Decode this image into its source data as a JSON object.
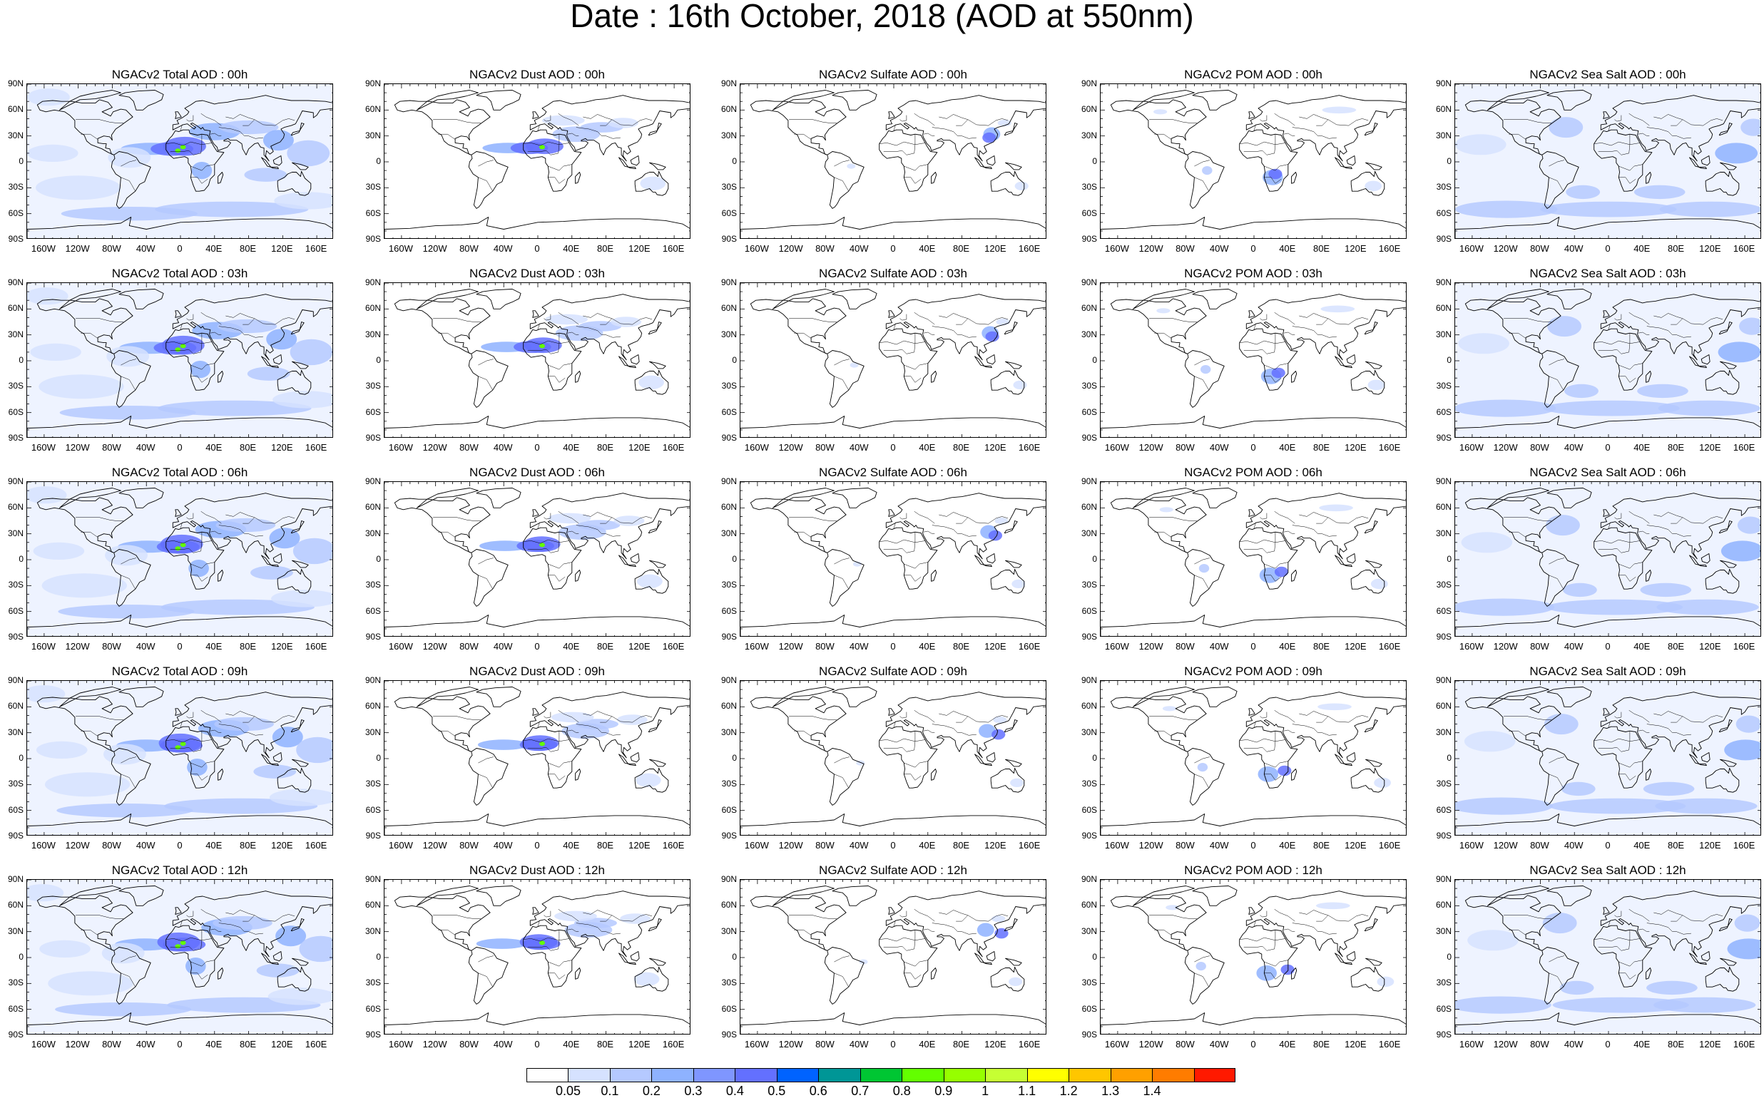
{
  "title": "Date : 16th October, 2018 (AOD at 550nm)",
  "lat_labels": [
    "90N",
    "60N",
    "30N",
    "0",
    "30S",
    "60S",
    "90S"
  ],
  "lon_labels": [
    "160W",
    "120W",
    "80W",
    "40W",
    "0",
    "40E",
    "80E",
    "120E",
    "160E"
  ],
  "lon_values": [
    -160,
    -120,
    -80,
    -40,
    0,
    40,
    80,
    120,
    160
  ],
  "panels": [
    {
      "title": "NGACv2 Total AOD : 00h",
      "species": "total",
      "hour": 0
    },
    {
      "title": "NGACv2 Dust AOD : 00h",
      "species": "dust",
      "hour": 0
    },
    {
      "title": "NGACv2 Sulfate AOD : 00h",
      "species": "sulfate",
      "hour": 0
    },
    {
      "title": "NGACv2 POM AOD : 00h",
      "species": "pom",
      "hour": 0
    },
    {
      "title": "NGACv2 Sea Salt AOD : 00h",
      "species": "seasalt",
      "hour": 0
    },
    {
      "title": "NGACv2 Total AOD : 03h",
      "species": "total",
      "hour": 3
    },
    {
      "title": "NGACv2 Dust AOD : 03h",
      "species": "dust",
      "hour": 3
    },
    {
      "title": "NGACv2 Sulfate AOD : 03h",
      "species": "sulfate",
      "hour": 3
    },
    {
      "title": "NGACv2 POM AOD : 03h",
      "species": "pom",
      "hour": 3
    },
    {
      "title": "NGACv2 Sea Salt AOD : 03h",
      "species": "seasalt",
      "hour": 3
    },
    {
      "title": "NGACv2 Total AOD : 06h",
      "species": "total",
      "hour": 6
    },
    {
      "title": "NGACv2 Dust AOD : 06h",
      "species": "dust",
      "hour": 6
    },
    {
      "title": "NGACv2 Sulfate AOD : 06h",
      "species": "sulfate",
      "hour": 6
    },
    {
      "title": "NGACv2 POM AOD : 06h",
      "species": "pom",
      "hour": 6
    },
    {
      "title": "NGACv2 Sea Salt AOD : 06h",
      "species": "seasalt",
      "hour": 6
    },
    {
      "title": "NGACv2 Total AOD : 09h",
      "species": "total",
      "hour": 9
    },
    {
      "title": "NGACv2 Dust AOD : 09h",
      "species": "dust",
      "hour": 9
    },
    {
      "title": "NGACv2 Sulfate AOD : 09h",
      "species": "sulfate",
      "hour": 9
    },
    {
      "title": "NGACv2 POM AOD : 09h",
      "species": "pom",
      "hour": 9
    },
    {
      "title": "NGACv2 Sea Salt  AOD : 09h",
      "species": "seasalt",
      "hour": 9
    },
    {
      "title": "NGACv2 Total AOD  : 12h",
      "species": "total",
      "hour": 12
    },
    {
      "title": "NGACv2 Dust AOD : 12h",
      "species": "dust",
      "hour": 12
    },
    {
      "title": "NGACv2 Sulfate AOD : 12h",
      "species": "sulfate",
      "hour": 12
    },
    {
      "title": "NGACv2 POM  AOD : 12h",
      "species": "pom",
      "hour": 12
    },
    {
      "title": "NGACv2 Sea Salt  AOD : 12h",
      "species": "seasalt",
      "hour": 12
    }
  ],
  "colorbar": {
    "labels": [
      "0.05",
      "0.1",
      "0.2",
      "0.3",
      "0.4",
      "0.5",
      "0.6",
      "0.7",
      "0.8",
      "0.9",
      "1",
      "1.1",
      "1.2",
      "1.3",
      "1.4"
    ],
    "colors": [
      "#ffffff",
      "#d6e2ff",
      "#b5c9ff",
      "#8eb2ff",
      "#7f96ff",
      "#6370ff",
      "#0063ff",
      "#009696",
      "#00c633",
      "#63ff00",
      "#96ff00",
      "#c6ff33",
      "#ffff00",
      "#ffc600",
      "#ffa000",
      "#ff7c00",
      "#ff1900"
    ]
  },
  "map_colors": {
    "coast": "#000000",
    "light": "#d6e2ff",
    "medium": "#b5c9ff",
    "strong": "#8eb2ff",
    "heavy": "#6370ff",
    "peak": "#63ff00"
  }
}
